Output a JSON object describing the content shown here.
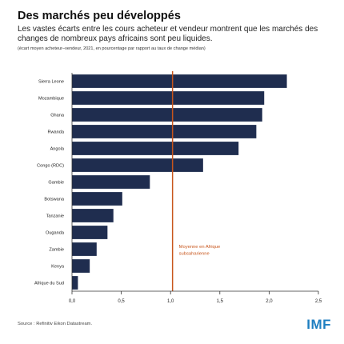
{
  "header": {
    "title": "Des marchés peu développés",
    "subtitle": "Les vastes écarts entre les cours acheteur et vendeur montrent que les marchés des changes de nombreux pays africains sont peu liquides.",
    "note": "(écart moyen acheteur–vendeur, 2021, en pourcentage par rapport au taux de change médian)"
  },
  "footer": {
    "source": "Source : Refinitiv Eikon Datastream.",
    "logo": "IMF"
  },
  "colors": {
    "bar": "#1f2d4f",
    "reference_line": "#c8551b",
    "axis": "#333333"
  },
  "chart_data": {
    "type": "bar",
    "orientation": "horizontal",
    "categories": [
      "Sierra Leone",
      "Mozambique",
      "Ghana",
      "Rwanda",
      "Angola",
      "Congo (RDC)",
      "Gambie",
      "Botswana",
      "Tanzanie",
      "Ouganda",
      "Zambie",
      "Kenya",
      "Afrique du Sud"
    ],
    "values": [
      2.18,
      1.95,
      1.93,
      1.87,
      1.69,
      1.33,
      0.79,
      0.51,
      0.42,
      0.36,
      0.25,
      0.18,
      0.06
    ],
    "xlim": [
      0,
      2.5
    ],
    "xticks": [
      0,
      0.5,
      1.0,
      1.5,
      2.0,
      2.5
    ],
    "xtick_labels": [
      "0,0",
      "0,5",
      "1,0",
      "1,5",
      "2,0",
      "2,5"
    ],
    "reference_line": {
      "value": 1.02,
      "label_lines": [
        "Moyenne en Afrique",
        "subsaharienne"
      ]
    },
    "grid": false
  }
}
